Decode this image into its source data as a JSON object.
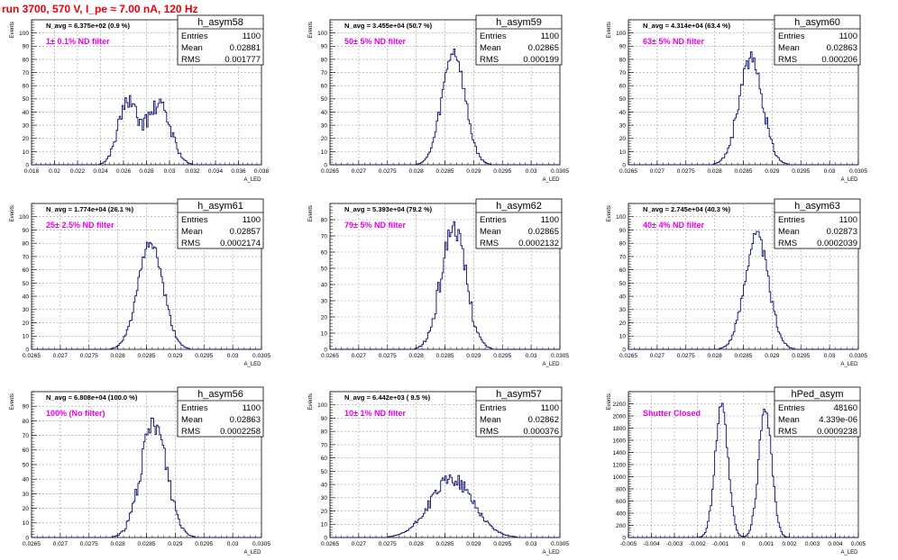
{
  "run_title": "run 3700,   570 V, I_pe ≈ 7.00 nA, 120 Hz",
  "colors": {
    "hist": "#0a0a6e",
    "annotation": "#e600e6",
    "title": "#e8000b",
    "grid": "#9a9a9a"
  },
  "stat_labels": {
    "entries": "Entries",
    "mean": "Mean",
    "rms": "RMS"
  },
  "chart_data": [
    {
      "type": "histogram",
      "name": "h_asym58",
      "ylabel": "Events",
      "xlabel": "A_LED",
      "xlim": [
        0.018,
        0.038
      ],
      "ylim": [
        0,
        110
      ],
      "grid": true,
      "xticks": [
        "0.018",
        "0.02",
        "0.022",
        "0.024",
        "0.026",
        "0.028",
        "0.03",
        "0.032",
        "0.034",
        "0.036",
        "0.038"
      ],
      "yticks": [
        "0",
        "10",
        "20",
        "30",
        "40",
        "50",
        "60",
        "70",
        "80",
        "90",
        "100"
      ],
      "navg": "N_avg = 6.375e+02 (0.9 %)",
      "note": "1± 0.1% ND filter",
      "stats": {
        "entries": "1100",
        "mean": "0.02881",
        "rms": "0.001777"
      },
      "shape": {
        "peaks": [
          [
            0.0263,
            0.0008,
            45
          ],
          [
            0.0294,
            0.0009,
            32
          ],
          [
            0.0283,
            0.001,
            20
          ]
        ],
        "seed": 58,
        "noise": 6
      }
    },
    {
      "type": "histogram",
      "name": "h_asym59",
      "ylabel": "Events",
      "xlabel": "A_LED",
      "xlim": [
        0.0265,
        0.0305
      ],
      "ylim": [
        0,
        110
      ],
      "grid": true,
      "xticks": [
        "0.0265",
        "0.027",
        "0.0275",
        "0.028",
        "0.0285",
        "0.029",
        "0.0295",
        "0.03",
        "0.0305"
      ],
      "yticks": [
        "0",
        "10",
        "20",
        "30",
        "40",
        "50",
        "60",
        "70",
        "80",
        "90",
        "100"
      ],
      "navg": "N_avg = 3.455e+04 (50.7 %)",
      "note": "50± 5% ND filter",
      "stats": {
        "entries": "1100",
        "mean": "0.02865",
        "rms": "0.000199"
      },
      "shape": {
        "peaks": [
          [
            0.02865,
            0.000199,
            86
          ]
        ],
        "seed": 59,
        "noise": 5
      }
    },
    {
      "type": "histogram",
      "name": "h_asym60",
      "ylabel": "Events",
      "xlabel": "A_LED",
      "xlim": [
        0.0265,
        0.0305
      ],
      "ylim": [
        0,
        110
      ],
      "grid": true,
      "xticks": [
        "0.0265",
        "0.027",
        "0.0275",
        "0.028",
        "0.0285",
        "0.029",
        "0.0295",
        "0.03",
        "0.0305"
      ],
      "yticks": [
        "0",
        "10",
        "20",
        "30",
        "40",
        "50",
        "60",
        "70",
        "80",
        "90",
        "100"
      ],
      "navg": "N_avg = 4.314e+04 (63.4 %)",
      "note": "63± 5% ND filter",
      "stats": {
        "entries": "1100",
        "mean": "0.02863",
        "rms": "0.000206"
      },
      "shape": {
        "peaks": [
          [
            0.02863,
            0.000206,
            80
          ]
        ],
        "seed": 60,
        "noise": 6
      }
    },
    {
      "type": "histogram",
      "name": "h_asym61",
      "ylabel": "Events",
      "xlabel": "A_LED",
      "xlim": [
        0.0265,
        0.0305
      ],
      "ylim": [
        0,
        110
      ],
      "grid": true,
      "xticks": [
        "0.0265",
        "0.027",
        "0.0275",
        "0.028",
        "0.0285",
        "0.029",
        "0.0295",
        "0.03",
        "0.0305"
      ],
      "yticks": [
        "0",
        "10",
        "20",
        "30",
        "40",
        "50",
        "60",
        "70",
        "80",
        "90",
        "100"
      ],
      "navg": "N_avg = 1.774e+04 (26.1 %)",
      "note": "25± 2.5% ND filter",
      "stats": {
        "entries": "1100",
        "mean": "0.02857",
        "rms": "0.0002174"
      },
      "shape": {
        "peaks": [
          [
            0.02857,
            0.000217,
            80
          ]
        ],
        "seed": 61,
        "noise": 4
      }
    },
    {
      "type": "histogram",
      "name": "h_asym62",
      "ylabel": "Events",
      "xlabel": "A_LED",
      "xlim": [
        0.0265,
        0.0305
      ],
      "ylim": [
        0,
        90
      ],
      "grid": true,
      "xticks": [
        "0.0265",
        "0.027",
        "0.0275",
        "0.028",
        "0.0285",
        "0.029",
        "0.0295",
        "0.03",
        "0.0305"
      ],
      "yticks": [
        "0",
        "10",
        "20",
        "30",
        "40",
        "50",
        "60",
        "70",
        "80"
      ],
      "navg": "N_avg = 5.393e+04 (79.2 %)",
      "note": "79± 5% ND filter",
      "stats": {
        "entries": "1100",
        "mean": "0.02865",
        "rms": "0.0002132"
      },
      "shape": {
        "peaks": [
          [
            0.02865,
            0.000213,
            76
          ]
        ],
        "seed": 62,
        "noise": 6
      }
    },
    {
      "type": "histogram",
      "name": "h_asym63",
      "ylabel": "Events",
      "xlabel": "A_LED",
      "xlim": [
        0.0265,
        0.0305
      ],
      "ylim": [
        0,
        110
      ],
      "grid": true,
      "xticks": [
        "0.0265",
        "0.027",
        "0.0275",
        "0.028",
        "0.0285",
        "0.029",
        "0.0295",
        "0.03",
        "0.0305"
      ],
      "yticks": [
        "0",
        "10",
        "20",
        "30",
        "40",
        "50",
        "60",
        "70",
        "80",
        "90",
        "100"
      ],
      "navg": "N_avg = 2.745e+04 (40.3 %)",
      "note": "40± 4% ND filter",
      "stats": {
        "entries": "1100",
        "mean": "0.02873",
        "rms": "0.0002039"
      },
      "shape": {
        "peaks": [
          [
            0.02873,
            0.000204,
            86
          ]
        ],
        "seed": 63,
        "noise": 5
      }
    },
    {
      "type": "histogram",
      "name": "h_asym56",
      "ylabel": "Events",
      "xlabel": "A_LED",
      "xlim": [
        0.0265,
        0.0305
      ],
      "ylim": [
        0,
        100
      ],
      "grid": true,
      "xticks": [
        "0.0265",
        "0.027",
        "0.0275",
        "0.028",
        "0.0285",
        "0.029",
        "0.0295",
        "0.03",
        "0.0305"
      ],
      "yticks": [
        "0",
        "10",
        "20",
        "30",
        "40",
        "50",
        "60",
        "70",
        "80",
        "90"
      ],
      "navg": "N_avg = 6.808e+04 (100.0 %)",
      "note": "100% (No filter)",
      "stats": {
        "entries": "1100",
        "mean": "0.02863",
        "rms": "0.0002258"
      },
      "shape": {
        "peaks": [
          [
            0.02863,
            0.000226,
            78
          ]
        ],
        "seed": 56,
        "noise": 7
      }
    },
    {
      "type": "histogram",
      "name": "h_asym57",
      "ylabel": "Events",
      "xlabel": "A_LED",
      "xlim": [
        0.0265,
        0.0305
      ],
      "ylim": [
        0,
        110
      ],
      "grid": true,
      "xticks": [
        "0.0265",
        "0.027",
        "0.0275",
        "0.028",
        "0.0285",
        "0.029",
        "0.0295",
        "0.03",
        "0.0305"
      ],
      "yticks": [
        "0",
        "10",
        "20",
        "30",
        "40",
        "50",
        "60",
        "70",
        "80",
        "90",
        "100"
      ],
      "navg": "N_avg = 6.442e+03 ( 9.5 %)",
      "note": "10± 1% ND filter",
      "stats": {
        "entries": "1100",
        "mean": "0.02862",
        "rms": "0.000376"
      },
      "shape": {
        "peaks": [
          [
            0.02862,
            0.000376,
            44
          ]
        ],
        "seed": 57,
        "noise": 5
      }
    },
    {
      "type": "histogram",
      "name": "hPed_asym",
      "ylabel": "Events",
      "xlabel": "A_LED",
      "xlim": [
        -0.005,
        0.005
      ],
      "ylim": [
        0,
        2400
      ],
      "grid": true,
      "xticks": [
        "-0.005",
        "-0.004",
        "-0.003",
        "-0.002",
        "-0.001",
        "0",
        "0.001",
        "0.002",
        "0.003",
        "0.004",
        "0.005"
      ],
      "yticks": [
        "0",
        "200",
        "400",
        "600",
        "800",
        "1000",
        "1200",
        "1400",
        "1600",
        "1800",
        "2000",
        "2200"
      ],
      "navg": "",
      "note": "Shutter Closed",
      "stats": {
        "entries": "48160",
        "mean": "4.339e-06",
        "rms": "0.0009238"
      },
      "shape": {
        "peaks": [
          [
            -0.00095,
            0.00028,
            2150
          ],
          [
            0.00095,
            0.00028,
            2150
          ]
        ],
        "seed": 99,
        "noise": 90
      }
    }
  ]
}
